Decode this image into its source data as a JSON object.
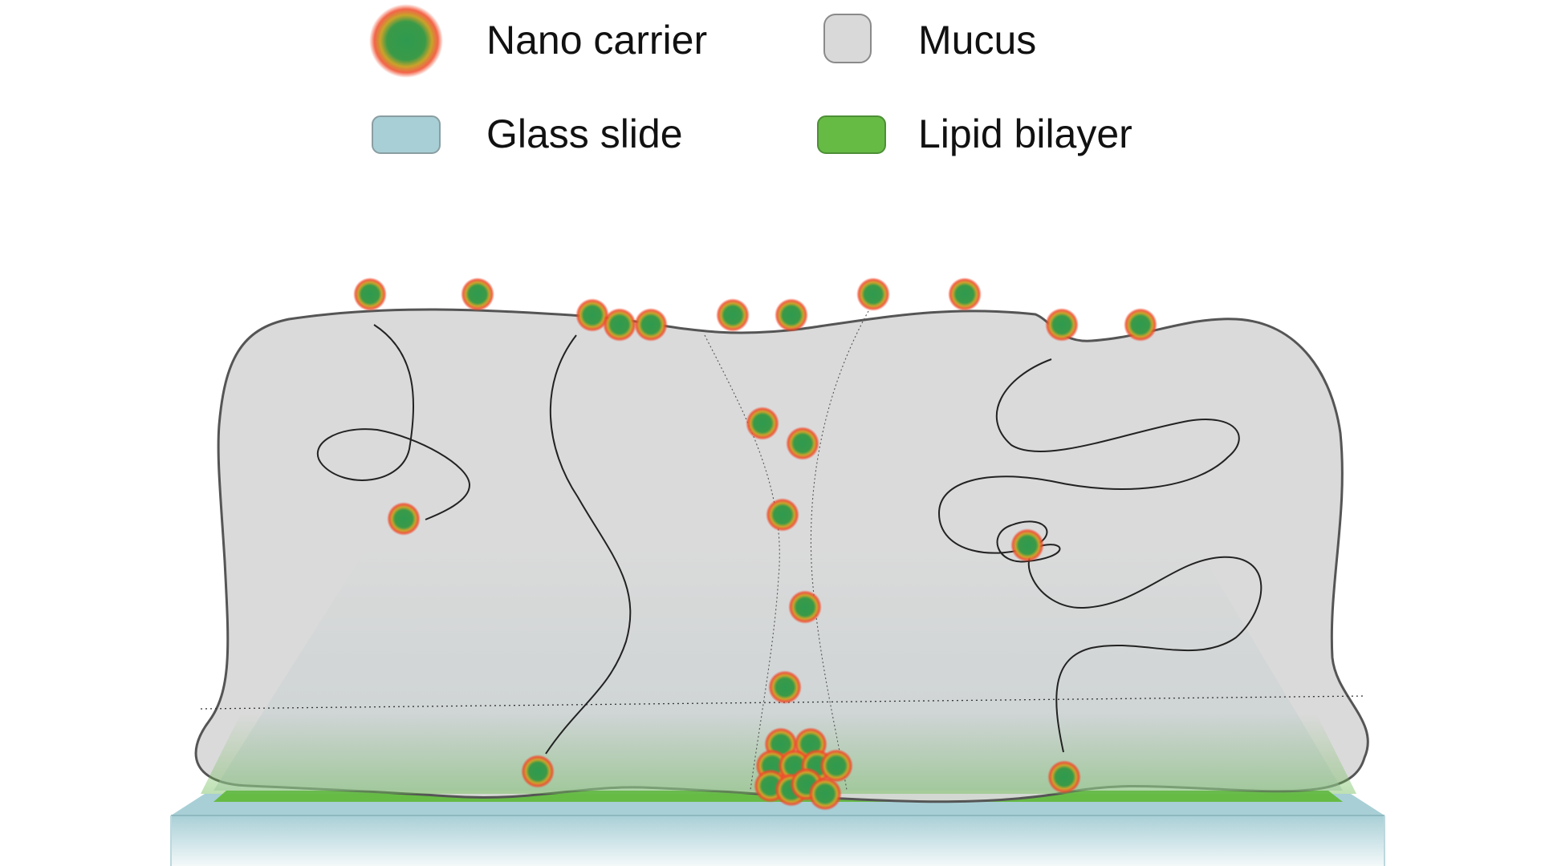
{
  "legend": {
    "nano_carrier": "Nano carrier",
    "mucus": "Mucus",
    "glass_slide": "Glass slide",
    "lipid_bilayer": "Lipid bilayer"
  },
  "colors": {
    "carrier_core": "#2e9a4f",
    "carrier_mid": "#c9a32a",
    "carrier_glow": "#f04a2a",
    "mucus_fill": "#d9d9d9",
    "mucus_stroke": "#555555",
    "glass_fill": "#a8cfd6",
    "lipid_fill": "#66bb44",
    "fiber_stroke": "#222222"
  },
  "icons": {
    "carrier": "nano-carrier-icon",
    "mucus": "mucus-swatch-icon",
    "glass": "glass-slide-swatch-icon",
    "lipid": "lipid-bilayer-swatch-icon"
  }
}
